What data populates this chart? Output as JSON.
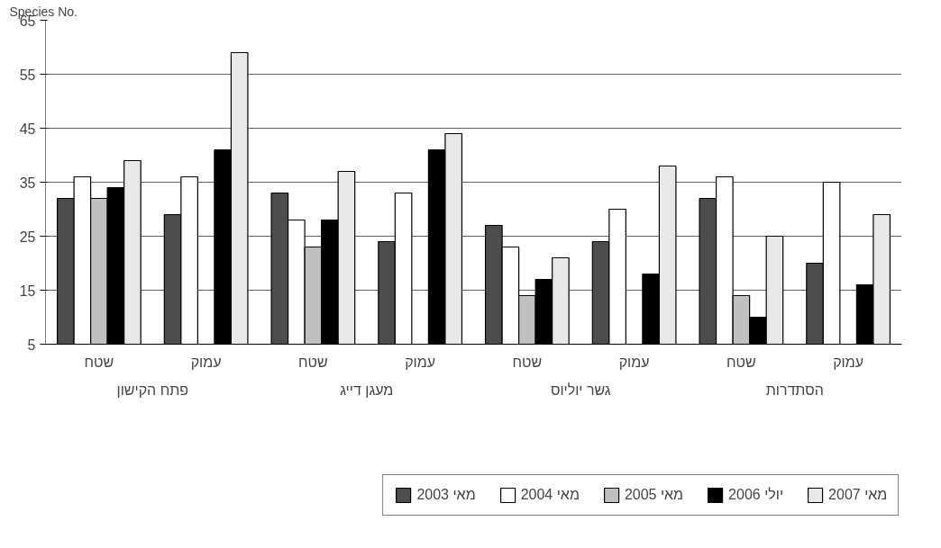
{
  "chart_data": {
    "type": "bar",
    "ylabel": "Species No.",
    "categories": [
      "שטח",
      "עמוק",
      "שטח",
      "עמוק",
      "שטח",
      "עמוק",
      "שטח",
      "עמוק"
    ],
    "annotations": [
      "פתח הקישון",
      "מעגן דייג",
      "גשר יוליוס",
      "הסתדרות"
    ],
    "series": [
      {
        "name": "מאי 2003",
        "color": "#4d4d4d",
        "values": [
          32,
          29,
          33,
          24,
          27,
          24,
          32,
          20
        ]
      },
      {
        "name": "מאי 2004",
        "color": "#ffffff",
        "values": [
          36,
          36,
          28,
          33,
          23,
          30,
          36,
          35
        ]
      },
      {
        "name": "מאי 2005",
        "color": "#c0c0c0",
        "values": [
          32,
          null,
          23,
          null,
          14,
          null,
          14,
          null
        ]
      },
      {
        "name": "יולי 2006",
        "color": "#000000",
        "values": [
          34,
          41,
          28,
          41,
          17,
          18,
          10,
          16
        ]
      },
      {
        "name": "מאי 2007",
        "color": "#e8e8e8",
        "values": [
          39,
          59,
          37,
          44,
          21,
          38,
          25,
          29
        ]
      }
    ],
    "ylim": [
      5,
      65
    ],
    "yticks": [
      5,
      15,
      25,
      35,
      45,
      55,
      65
    ],
    "grid": "y",
    "legend": "bottom"
  }
}
